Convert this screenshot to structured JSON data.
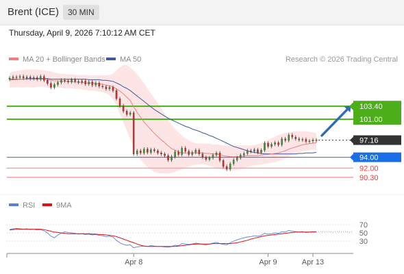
{
  "header": {
    "title": "Brent (ICE)",
    "timeframe": "30 MIN",
    "timestamp": "Thursday, April 9, 2026 7:10:12 AM CET"
  },
  "legend": {
    "ma20": "MA 20 + Bollinger Bands",
    "ma50": "MA 50",
    "copyright": "Research © 2026 Trading Central",
    "ma20_color": "#f08080",
    "ma50_color": "#3a5a9a"
  },
  "rsi_legend": {
    "rsi": "RSI",
    "ma9": "9MA",
    "rsi_color": "#5b7fd6",
    "ma9_color": "#dd1111"
  },
  "chart_data": [
    {
      "type": "line",
      "panel": "price",
      "price_range": [
        87,
        111
      ],
      "levels": [
        {
          "value": 103.4,
          "label": "103.40",
          "kind": "resistance",
          "color": "#4caf1a"
        },
        {
          "value": 101.0,
          "label": "101.00",
          "kind": "resistance",
          "color": "#4caf1a"
        },
        {
          "value": 97.16,
          "label": "97.16",
          "kind": "last",
          "color": "#333333"
        },
        {
          "value": 94.0,
          "label": "94.00",
          "kind": "pivot",
          "color": "#1a6ee8"
        },
        {
          "value": 92.0,
          "label": "92.00",
          "kind": "support",
          "color": "#e0403f"
        },
        {
          "value": 90.3,
          "label": "90.30",
          "kind": "support",
          "color": "#e0403f"
        }
      ],
      "close": [
        108.6,
        108.8,
        108.7,
        108.9,
        108.6,
        108.8,
        108.5,
        108.7,
        108.4,
        108.9,
        108.2,
        107.6,
        106.9,
        107.4,
        107.8,
        108.2,
        108.1,
        107.9,
        108.3,
        108.0,
        107.8,
        108.1,
        107.5,
        107.9,
        107.3,
        107.7,
        107.1,
        107.0,
        106.6,
        106.9,
        106.3,
        104.8,
        103.5,
        102.5,
        101.9,
        102.2,
        94.6,
        95.2,
        94.8,
        95.5,
        94.9,
        95.4,
        95.2,
        94.8,
        94.6,
        94.3,
        93.5,
        94.1,
        95.0,
        94.5,
        95.7,
        95.1,
        94.5,
        94.9,
        95.3,
        94.6,
        94.0,
        93.6,
        93.9,
        94.4,
        94.8,
        93.4,
        92.3,
        91.8,
        92.8,
        93.5,
        93.9,
        94.4,
        94.7,
        95.2,
        95.1,
        95.4,
        94.9,
        95.3,
        96.6,
        96.0,
        96.4,
        96.7,
        96.3,
        97.4,
        97.1,
        98.1,
        97.7,
        97.4,
        97.2,
        97.3,
        96.9,
        97.0,
        97.2,
        97.1
      ],
      "ma20": [
        108.2,
        108.3,
        108.3,
        108.4,
        108.4,
        108.4,
        108.4,
        108.4,
        108.4,
        108.4,
        108.4,
        108.3,
        108.2,
        108.1,
        108.1,
        108.0,
        108.0,
        108.0,
        107.9,
        107.9,
        107.8,
        107.8,
        107.7,
        107.7,
        107.7,
        107.6,
        107.5,
        107.5,
        107.3,
        107.2,
        107.0,
        106.6,
        106.2,
        105.7,
        105.1,
        104.5,
        103.3,
        102.3,
        101.4,
        100.5,
        99.8,
        99.1,
        98.4,
        97.8,
        97.2,
        96.7,
        96.1,
        95.6,
        95.3,
        95.0,
        94.8,
        94.8,
        94.8,
        94.8,
        94.8,
        94.8,
        94.8,
        94.7,
        94.7,
        94.6,
        94.6,
        94.5,
        94.3,
        94.2,
        94.1,
        94.1,
        94.1,
        94.2,
        94.2,
        94.3,
        94.3,
        94.3,
        94.3,
        94.4,
        94.5,
        94.5,
        94.6,
        94.7,
        94.8,
        95.0,
        95.2,
        95.5,
        95.7,
        95.9,
        96.1,
        96.3,
        96.4,
        96.5,
        96.6,
        96.7
      ],
      "ma50": [
        108.4,
        108.4,
        108.4,
        108.4,
        108.4,
        108.5,
        108.5,
        108.5,
        108.5,
        108.5,
        108.5,
        108.5,
        108.4,
        108.4,
        108.4,
        108.4,
        108.4,
        108.4,
        108.4,
        108.4,
        108.4,
        108.4,
        108.4,
        108.3,
        108.3,
        108.3,
        108.3,
        108.2,
        108.2,
        108.1,
        108.0,
        107.7,
        107.4,
        107.0,
        106.7,
        106.3,
        105.8,
        105.3,
        104.8,
        104.3,
        103.8,
        103.3,
        102.8,
        102.4,
        102.0,
        101.6,
        101.2,
        100.9,
        100.6,
        100.3,
        100.0,
        99.7,
        99.5,
        99.2,
        99.0,
        98.8,
        98.5,
        98.3,
        98.0,
        97.8,
        97.5,
        97.2,
        96.9,
        96.6,
        96.3,
        96.0,
        95.8,
        95.6,
        95.4,
        95.2,
        95.0,
        94.9,
        94.8,
        94.7,
        94.6,
        94.6,
        94.6,
        94.6,
        94.6,
        94.6,
        94.6,
        94.6,
        94.6,
        94.6,
        94.7,
        94.7,
        94.8,
        94.8,
        94.8,
        94.9
      ],
      "bb_upper": [
        109.6,
        109.8,
        109.9,
        110.0,
        110.1,
        110.2,
        110.2,
        110.2,
        110.2,
        110.1,
        110.0,
        109.9,
        109.8,
        109.6,
        109.5,
        109.4,
        109.4,
        109.3,
        109.3,
        109.2,
        109.2,
        109.2,
        109.2,
        109.1,
        109.1,
        109.1,
        109.1,
        109.1,
        109.1,
        109.2,
        109.4,
        110.0,
        110.6,
        111.0,
        111.0,
        110.6,
        110.0,
        109.3,
        108.5,
        107.6,
        106.7,
        105.8,
        104.9,
        104.0,
        103.0,
        102.0,
        101.0,
        100.0,
        99.2,
        98.6,
        98.0,
        97.5,
        97.1,
        96.8,
        96.6,
        96.5,
        96.5,
        96.5,
        96.5,
        96.4,
        96.4,
        96.3,
        96.2,
        96.2,
        96.2,
        96.2,
        96.2,
        96.2,
        96.2,
        96.2,
        96.2,
        96.3,
        96.4,
        96.6,
        96.9,
        97.2,
        97.5,
        97.8,
        98.1,
        98.3,
        98.5,
        98.6,
        98.7,
        98.8,
        98.8,
        98.8,
        98.8,
        98.7,
        98.6,
        98.5
      ],
      "bb_lower": [
        106.8,
        106.9,
        106.9,
        106.9,
        106.9,
        106.9,
        106.9,
        106.9,
        107.0,
        107.0,
        107.0,
        106.9,
        106.8,
        106.8,
        106.8,
        106.8,
        106.7,
        106.7,
        106.7,
        106.6,
        106.6,
        106.5,
        106.4,
        106.3,
        106.3,
        106.2,
        106.1,
        106.0,
        105.8,
        105.4,
        104.7,
        103.6,
        102.0,
        100.4,
        98.9,
        97.4,
        95.9,
        94.6,
        93.6,
        92.8,
        92.2,
        91.7,
        91.3,
        91.1,
        91.0,
        91.0,
        91.0,
        91.1,
        91.3,
        91.6,
        91.8,
        92.1,
        92.3,
        92.5,
        92.6,
        92.7,
        92.7,
        92.6,
        92.4,
        92.2,
        92.0,
        91.8,
        91.7,
        91.6,
        91.6,
        91.6,
        91.7,
        91.8,
        92.0,
        92.2,
        92.4,
        92.5,
        92.6,
        92.7,
        92.8,
        92.9,
        93.0,
        93.1,
        93.3,
        93.5,
        93.8,
        94.1,
        94.4,
        94.7,
        94.9,
        95.1,
        95.2,
        95.3,
        95.4,
        95.4
      ],
      "projection": {
        "from": 97.2,
        "to": 103.4
      }
    },
    {
      "type": "line",
      "panel": "rsi",
      "y_range": [
        0,
        100
      ],
      "ticks": [
        70,
        50,
        30
      ],
      "x_labels": [
        {
          "label": "Apr 8",
          "index": 36
        },
        {
          "label": "Apr 9",
          "index": 75
        },
        {
          "label": "Apr 13",
          "index": 88
        }
      ],
      "rsi": [
        58,
        60,
        61,
        60,
        59,
        60,
        58,
        59,
        57,
        58,
        55,
        50,
        42,
        38,
        45,
        49,
        53,
        51,
        50,
        49,
        47,
        48,
        46,
        47,
        45,
        46,
        44,
        43,
        41,
        42,
        40,
        32,
        26,
        22,
        20,
        21,
        14,
        16,
        17,
        18,
        17,
        19,
        18,
        17,
        17,
        16,
        15,
        17,
        20,
        19,
        24,
        23,
        22,
        23,
        25,
        24,
        22,
        21,
        23,
        25,
        27,
        24,
        22,
        21,
        26,
        30,
        33,
        36,
        38,
        40,
        41,
        43,
        42,
        44,
        49,
        47,
        48,
        50,
        49,
        53,
        52,
        56,
        54,
        53,
        52,
        53,
        51,
        52,
        53,
        53
      ],
      "ma9": [
        57,
        58,
        59,
        59,
        59,
        59,
        59,
        59,
        59,
        59,
        58,
        56,
        54,
        52,
        51,
        50,
        49,
        48,
        48,
        48,
        48,
        48,
        48,
        48,
        47,
        47,
        46,
        46,
        45,
        44,
        43,
        41,
        38,
        35,
        32,
        29,
        26,
        23,
        20,
        18,
        17,
        17,
        17,
        17,
        17,
        17,
        17,
        17,
        17,
        18,
        19,
        20,
        21,
        22,
        23,
        23,
        23,
        23,
        23,
        24,
        24,
        24,
        24,
        24,
        24,
        25,
        26,
        28,
        30,
        32,
        35,
        37,
        39,
        41,
        43,
        44,
        45,
        46,
        47,
        48,
        49,
        50,
        51,
        52,
        52,
        52,
        52,
        52,
        52,
        52
      ]
    }
  ]
}
